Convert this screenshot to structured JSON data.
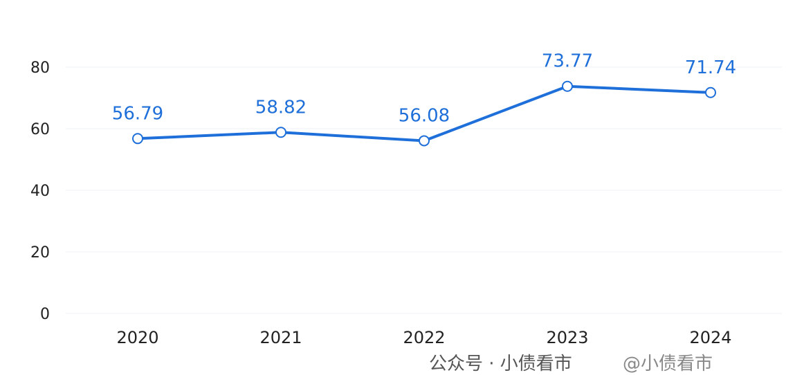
{
  "chart_data": {
    "type": "line",
    "title": "",
    "xlabel": "",
    "ylabel": "",
    "categories": [
      "2020",
      "2021",
      "2022",
      "2023",
      "2024"
    ],
    "series": [
      {
        "values": [
          56.79,
          58.82,
          56.08,
          73.77,
          71.74
        ]
      }
    ],
    "data_labels": [
      "56.79",
      "58.82",
      "56.08",
      "73.77",
      "71.74"
    ],
    "yticks": [
      "0",
      "20",
      "40",
      "60",
      "80"
    ],
    "ylim": [
      0,
      80
    ],
    "grid": true,
    "line_color": "#1e6fd9"
  },
  "watermark": {
    "text1": "公众号 · 小债看市",
    "text2": "@小债看市"
  }
}
